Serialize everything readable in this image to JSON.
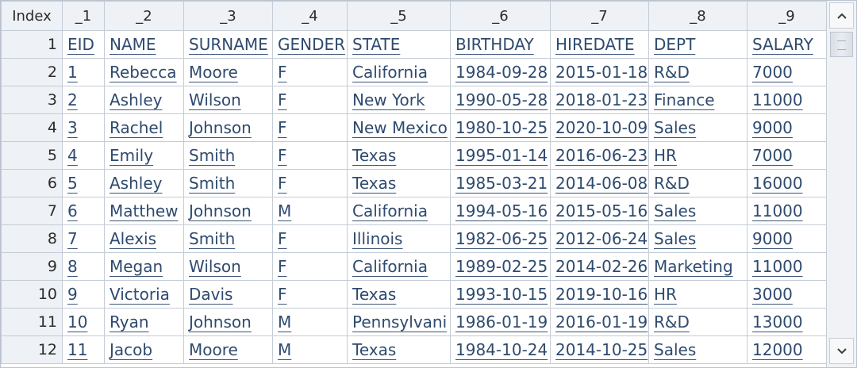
{
  "table": {
    "headers": [
      "Index",
      "_1",
      "_2",
      "_3",
      "_4",
      "_5",
      "_6",
      "_7",
      "_8",
      "_9"
    ],
    "rows": [
      {
        "index": "1",
        "cells": [
          "EID",
          "NAME",
          "SURNAME",
          "GENDER",
          "STATE",
          "BIRTHDAY",
          "HIREDATE",
          "DEPT",
          "SALARY"
        ]
      },
      {
        "index": "2",
        "cells": [
          "1",
          "Rebecca",
          "Moore",
          "F",
          "California",
          "1984-09-28",
          "2015-01-18",
          "R&D",
          "7000"
        ]
      },
      {
        "index": "3",
        "cells": [
          "2",
          "Ashley",
          "Wilson",
          "F",
          "New York",
          "1990-05-28",
          "2018-01-23",
          "Finance",
          "11000"
        ]
      },
      {
        "index": "4",
        "cells": [
          "3",
          "Rachel",
          "Johnson",
          "F",
          "New Mexico",
          "1980-10-25",
          "2020-10-09",
          "Sales",
          "9000"
        ]
      },
      {
        "index": "5",
        "cells": [
          "4",
          "Emily",
          "Smith",
          "F",
          "Texas",
          "1995-01-14",
          "2016-06-23",
          "HR",
          "7000"
        ]
      },
      {
        "index": "6",
        "cells": [
          "5",
          "Ashley",
          "Smith",
          "F",
          "Texas",
          "1985-03-21",
          "2014-06-08",
          "R&D",
          "16000"
        ]
      },
      {
        "index": "7",
        "cells": [
          "6",
          "Matthew",
          "Johnson",
          "M",
          "California",
          "1994-05-16",
          "2015-05-16",
          "Sales",
          "11000"
        ]
      },
      {
        "index": "8",
        "cells": [
          "7",
          "Alexis",
          "Smith",
          "F",
          "Illinois",
          "1982-06-25",
          "2012-06-24",
          "Sales",
          "9000"
        ]
      },
      {
        "index": "9",
        "cells": [
          "8",
          "Megan",
          "Wilson",
          "F",
          "California",
          "1989-02-25",
          "2014-02-26",
          "Marketing",
          "11000"
        ]
      },
      {
        "index": "10",
        "cells": [
          "9",
          "Victoria",
          "Davis",
          "F",
          "Texas",
          "1993-10-15",
          "2019-10-16",
          "HR",
          "3000"
        ]
      },
      {
        "index": "11",
        "cells": [
          "10",
          "Ryan",
          "Johnson",
          "M",
          "Pennsylvani",
          "1986-01-19",
          "2016-01-19",
          "R&D",
          "13000"
        ]
      },
      {
        "index": "12",
        "cells": [
          "11",
          "Jacob",
          "Moore",
          "M",
          "Texas",
          "1984-10-24",
          "2014-10-25",
          "Sales",
          "12000"
        ]
      }
    ]
  },
  "scrollbar": {
    "up_icon": "chevron-up-icon",
    "down_icon": "chevron-down-icon"
  }
}
